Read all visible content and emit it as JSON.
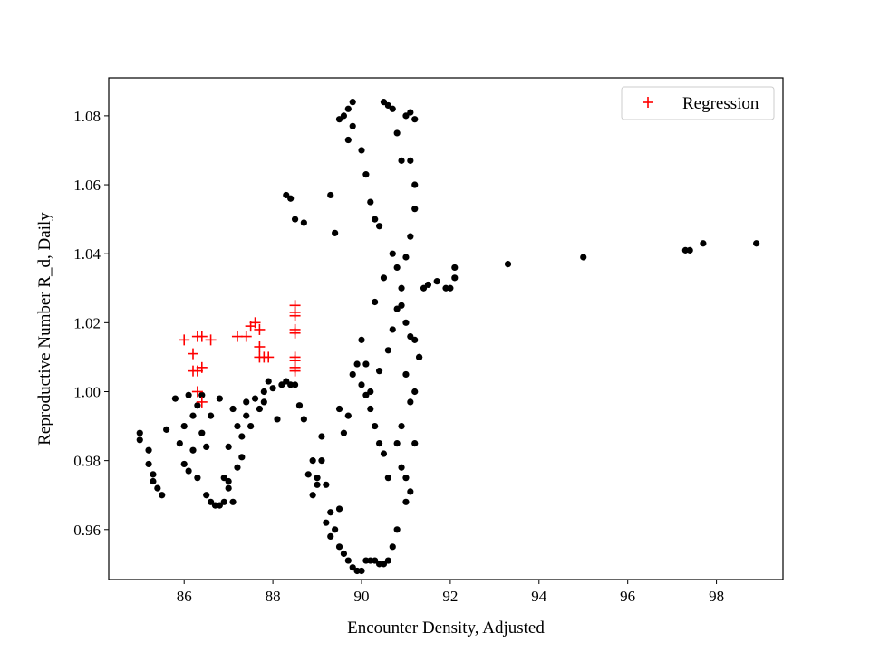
{
  "chart_data": {
    "type": "scatter",
    "xlabel": "Encounter Density, Adjusted",
    "ylabel": "Reproductive Number R_d, Daily",
    "xlim": [
      84.3,
      99.5
    ],
    "ylim": [
      0.9455,
      1.091
    ],
    "x_ticks": [
      86,
      88,
      90,
      92,
      94,
      96,
      98
    ],
    "y_ticks": [
      0.96,
      0.98,
      1.0,
      1.02,
      1.04,
      1.06,
      1.08
    ],
    "x_tick_labels": [
      "86",
      "88",
      "90",
      "92",
      "94",
      "96",
      "98"
    ],
    "y_tick_labels": [
      "0.96",
      "0.98",
      "1.00",
      "1.02",
      "1.04",
      "1.06",
      "1.08"
    ],
    "grid": false,
    "legend": {
      "position": "top-right",
      "entries": [
        "Regression"
      ]
    },
    "series": [
      {
        "name": "",
        "marker": "dot",
        "color": "#000000",
        "points": [
          [
            85.0,
            0.988
          ],
          [
            85.0,
            0.986
          ],
          [
            85.2,
            0.983
          ],
          [
            85.2,
            0.979
          ],
          [
            85.3,
            0.976
          ],
          [
            85.3,
            0.974
          ],
          [
            85.4,
            0.972
          ],
          [
            85.5,
            0.97
          ],
          [
            85.6,
            0.989
          ],
          [
            85.8,
            0.998
          ],
          [
            85.9,
            0.985
          ],
          [
            86.0,
            0.979
          ],
          [
            86.0,
            0.99
          ],
          [
            86.1,
            0.999
          ],
          [
            86.1,
            0.977
          ],
          [
            86.2,
            0.983
          ],
          [
            86.2,
            0.993
          ],
          [
            86.3,
            0.996
          ],
          [
            86.3,
            0.975
          ],
          [
            86.4,
            0.988
          ],
          [
            86.4,
            0.999
          ],
          [
            86.5,
            0.984
          ],
          [
            86.5,
            0.97
          ],
          [
            86.6,
            0.968
          ],
          [
            86.6,
            0.993
          ],
          [
            86.7,
            0.967
          ],
          [
            86.8,
            0.967
          ],
          [
            86.8,
            0.998
          ],
          [
            86.9,
            0.975
          ],
          [
            86.9,
            0.968
          ],
          [
            87.0,
            0.974
          ],
          [
            87.0,
            0.972
          ],
          [
            87.0,
            0.984
          ],
          [
            87.1,
            0.968
          ],
          [
            87.1,
            0.995
          ],
          [
            87.2,
            0.99
          ],
          [
            87.2,
            0.978
          ],
          [
            87.3,
            0.987
          ],
          [
            87.3,
            0.981
          ],
          [
            87.4,
            0.993
          ],
          [
            87.4,
            0.997
          ],
          [
            87.5,
            0.99
          ],
          [
            87.6,
            0.998
          ],
          [
            87.7,
            0.995
          ],
          [
            87.8,
            0.997
          ],
          [
            87.8,
            1.0
          ],
          [
            87.9,
            1.003
          ],
          [
            88.0,
            1.001
          ],
          [
            88.1,
            0.992
          ],
          [
            88.2,
            1.002
          ],
          [
            88.3,
            1.003
          ],
          [
            88.4,
            1.002
          ],
          [
            88.5,
            1.002
          ],
          [
            88.6,
            0.996
          ],
          [
            88.7,
            0.992
          ],
          [
            88.8,
            0.976
          ],
          [
            88.9,
            0.98
          ],
          [
            89.0,
            0.975
          ],
          [
            89.1,
            0.987
          ],
          [
            89.2,
            0.973
          ],
          [
            89.3,
            0.965
          ],
          [
            89.4,
            0.96
          ],
          [
            89.5,
            0.955
          ],
          [
            89.6,
            0.953
          ],
          [
            89.7,
            0.951
          ],
          [
            89.8,
            0.949
          ],
          [
            89.9,
            0.948
          ],
          [
            90.0,
            0.948
          ],
          [
            90.1,
            0.951
          ],
          [
            90.2,
            0.951
          ],
          [
            90.3,
            0.951
          ],
          [
            90.4,
            0.95
          ],
          [
            90.5,
            0.95
          ],
          [
            90.6,
            0.951
          ],
          [
            90.7,
            0.955
          ],
          [
            90.8,
            0.96
          ],
          [
            88.3,
            1.057
          ],
          [
            88.4,
            1.056
          ],
          [
            88.5,
            1.05
          ],
          [
            88.7,
            1.049
          ],
          [
            89.3,
            1.057
          ],
          [
            89.4,
            1.046
          ],
          [
            89.5,
            1.079
          ],
          [
            89.6,
            1.08
          ],
          [
            89.7,
            1.073
          ],
          [
            89.7,
            1.082
          ],
          [
            89.8,
            1.084
          ],
          [
            89.8,
            1.077
          ],
          [
            90.0,
            1.07
          ],
          [
            90.1,
            1.063
          ],
          [
            90.2,
            1.055
          ],
          [
            90.3,
            1.05
          ],
          [
            90.4,
            1.048
          ],
          [
            90.5,
            1.084
          ],
          [
            90.6,
            1.083
          ],
          [
            90.7,
            1.082
          ],
          [
            90.8,
            1.075
          ],
          [
            90.9,
            1.067
          ],
          [
            91.0,
            1.08
          ],
          [
            91.1,
            1.081
          ],
          [
            91.2,
            1.079
          ],
          [
            91.1,
            1.067
          ],
          [
            91.2,
            1.06
          ],
          [
            91.2,
            1.053
          ],
          [
            91.1,
            1.045
          ],
          [
            91.0,
            1.039
          ],
          [
            90.9,
            1.03
          ],
          [
            90.8,
            1.024
          ],
          [
            90.7,
            1.018
          ],
          [
            90.6,
            1.012
          ],
          [
            90.4,
            1.006
          ],
          [
            90.2,
            1.0
          ],
          [
            90.1,
            1.008
          ],
          [
            90.0,
            1.015
          ],
          [
            90.3,
            1.026
          ],
          [
            90.5,
            1.033
          ],
          [
            90.7,
            1.04
          ],
          [
            90.8,
            1.036
          ],
          [
            90.9,
            1.025
          ],
          [
            91.0,
            1.02
          ],
          [
            91.1,
            1.016
          ],
          [
            91.2,
            1.015
          ],
          [
            91.3,
            1.01
          ],
          [
            91.2,
            1.0
          ],
          [
            91.1,
            0.997
          ],
          [
            91.0,
            1.005
          ],
          [
            90.9,
            0.99
          ],
          [
            90.8,
            0.985
          ],
          [
            90.9,
            0.978
          ],
          [
            91.0,
            0.975
          ],
          [
            91.0,
            0.968
          ],
          [
            91.1,
            0.971
          ],
          [
            91.2,
            0.985
          ],
          [
            91.3,
            1.01
          ],
          [
            91.4,
            1.03
          ],
          [
            91.5,
            1.031
          ],
          [
            91.7,
            1.032
          ],
          [
            91.9,
            1.03
          ],
          [
            92.0,
            1.03
          ],
          [
            92.1,
            1.033
          ],
          [
            92.1,
            1.036
          ],
          [
            93.3,
            1.037
          ],
          [
            95.0,
            1.039
          ],
          [
            97.3,
            1.041
          ],
          [
            97.4,
            1.041
          ],
          [
            97.7,
            1.043
          ],
          [
            98.9,
            1.043
          ],
          [
            89.5,
            0.995
          ],
          [
            89.6,
            0.988
          ],
          [
            89.7,
            0.993
          ],
          [
            89.8,
            1.005
          ],
          [
            89.9,
            1.008
          ],
          [
            90.0,
            1.002
          ],
          [
            90.1,
            0.999
          ],
          [
            90.2,
            0.995
          ],
          [
            90.3,
            0.99
          ],
          [
            90.4,
            0.985
          ],
          [
            90.5,
            0.982
          ],
          [
            90.6,
            0.975
          ],
          [
            89.1,
            0.98
          ],
          [
            89.0,
            0.973
          ],
          [
            88.9,
            0.97
          ],
          [
            89.2,
            0.962
          ],
          [
            89.3,
            0.958
          ],
          [
            89.5,
            0.966
          ]
        ]
      },
      {
        "name": "Regression",
        "marker": "plus",
        "color": "#ff0000",
        "points": [
          [
            86.0,
            1.015
          ],
          [
            86.2,
            1.011
          ],
          [
            86.2,
            1.006
          ],
          [
            86.3,
            1.016
          ],
          [
            86.3,
            1.006
          ],
          [
            86.4,
            1.007
          ],
          [
            86.4,
            1.016
          ],
          [
            86.3,
            1.0
          ],
          [
            86.4,
            0.997
          ],
          [
            86.6,
            1.015
          ],
          [
            87.2,
            1.016
          ],
          [
            87.4,
            1.016
          ],
          [
            87.5,
            1.019
          ],
          [
            87.6,
            1.02
          ],
          [
            87.7,
            1.018
          ],
          [
            87.7,
            1.013
          ],
          [
            87.7,
            1.01
          ],
          [
            87.8,
            1.01
          ],
          [
            87.9,
            1.01
          ],
          [
            88.5,
            1.025
          ],
          [
            88.5,
            1.023
          ],
          [
            88.5,
            1.022
          ],
          [
            88.5,
            1.018
          ],
          [
            88.5,
            1.017
          ],
          [
            88.5,
            1.01
          ],
          [
            88.5,
            1.009
          ],
          [
            88.5,
            1.006
          ],
          [
            88.5,
            1.007
          ]
        ]
      }
    ]
  }
}
